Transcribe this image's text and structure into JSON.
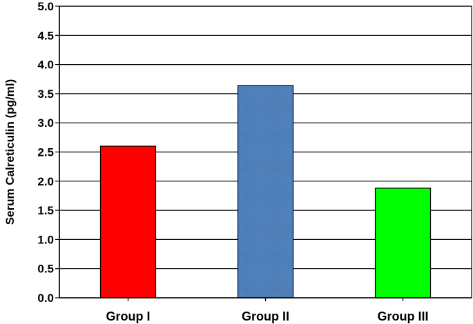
{
  "chart_data": {
    "type": "bar",
    "categories": [
      "Group I",
      "Group II",
      "Group III"
    ],
    "values": [
      2.6,
      3.64,
      1.88
    ],
    "colors": [
      "#ff0000",
      "#4f81bd",
      "#00ff00"
    ],
    "title": "",
    "xlabel": "",
    "ylabel": "Serum Calreticulin (pg/ml)",
    "ylim": [
      0,
      5.0
    ],
    "yticks": [
      "0.0",
      "0.5",
      "1.0",
      "1.5",
      "2.0",
      "2.5",
      "3.0",
      "3.5",
      "4.0",
      "4.5",
      "5.0"
    ],
    "grid": true,
    "legend": "none"
  }
}
